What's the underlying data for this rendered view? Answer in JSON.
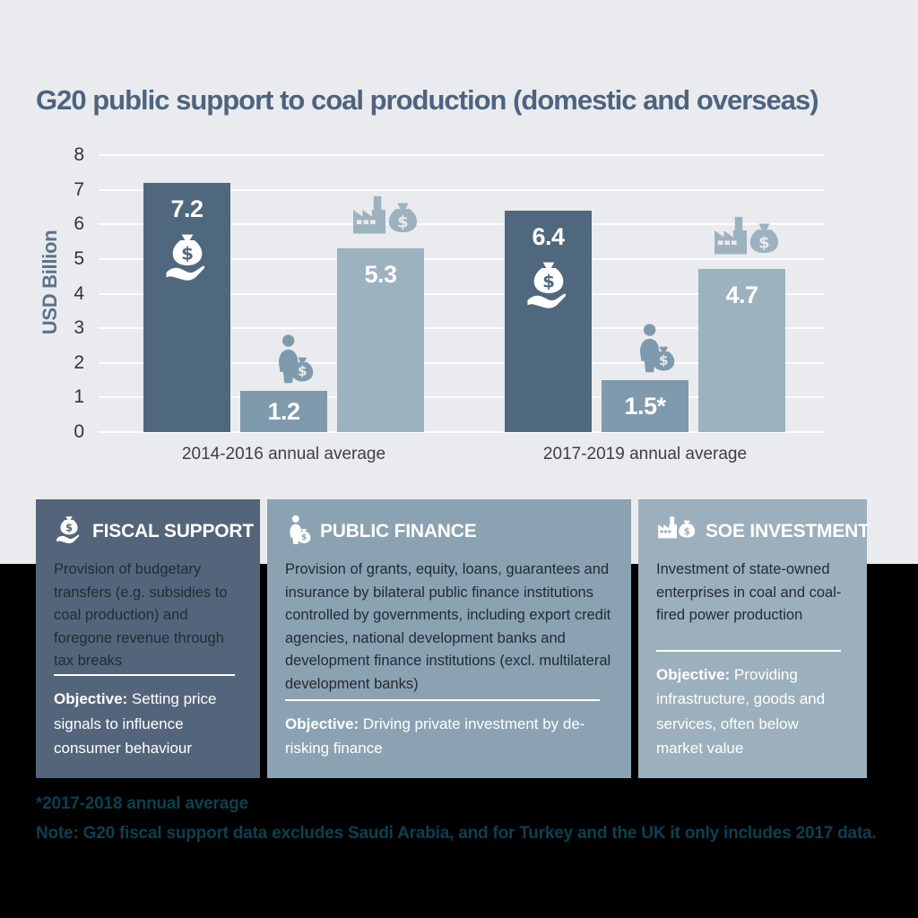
{
  "title": "G20 public support to coal production (domestic and overseas)",
  "chart_data": {
    "type": "bar",
    "title": "G20 public support to coal production (domestic and overseas)",
    "ylabel": "USD Billion",
    "ylim": [
      0,
      8
    ],
    "yticks": [
      0,
      1,
      2,
      3,
      4,
      5,
      6,
      7,
      8
    ],
    "grid": true,
    "legend_position": "none",
    "categories": [
      "2014-2016 annual average",
      "2017-2019 annual average"
    ],
    "series": [
      {
        "name": "Fiscal support",
        "values": [
          7.2,
          6.4
        ],
        "labels": [
          "7.2",
          "6.4"
        ],
        "color": "#50687d",
        "icon": "money-bag-hand",
        "icon_position": "inside"
      },
      {
        "name": "Public finance",
        "values": [
          1.2,
          1.5
        ],
        "labels": [
          "1.2",
          "1.5*"
        ],
        "color": "#7f9aac",
        "icon": "person-money-bag",
        "icon_position": "above"
      },
      {
        "name": "SOE investment",
        "values": [
          5.3,
          4.7
        ],
        "labels": [
          "5.3",
          "4.7"
        ],
        "color": "#9cb2bf",
        "icon": "factory-money-bag",
        "icon_position": "above"
      }
    ]
  },
  "cards": [
    {
      "title": "FISCAL SUPPORT",
      "icon": "money-bag-hand",
      "body": "Provision of budgetary transfers (e.g. subsidies to coal production) and foregone revenue through tax breaks",
      "objective_label": "Objective:",
      "objective_text": " Setting price signals to influence consumer behaviour"
    },
    {
      "title": "PUBLIC FINANCE",
      "icon": "person-money-bag",
      "body": "Provision of grants, equity, loans, guarantees and insurance by bilateral public finance institutions controlled by governments, including export credit agencies, national development banks and development finance institutions (excl. multilateral development banks)",
      "objective_label": "Objective:",
      "objective_text": " Driving private investment by de-risking finance"
    },
    {
      "title": "SOE INVESTMENT",
      "icon": "factory-money-bag",
      "body": "Investment of state-owned enterprises in coal and coal-fired power production",
      "objective_label": "Objective:",
      "objective_text": " Providing infrastructure, goods and services, often below market value"
    }
  ],
  "footnotes": [
    "*2017-2018 annual average",
    "Note: G20 fiscal support data excludes Saudi Arabia, and for Turkey and the UK it only includes 2017 data."
  ],
  "colors": {
    "background_top": "#eaebee",
    "background_bottom": "#000000",
    "title_text": "#4d6480",
    "axis_text": "#2e343b",
    "ylabel_text": "#5a7389",
    "bar_dark": "#50687d",
    "bar_medium": "#7f9aac",
    "bar_light": "#9cb2bf",
    "card_fiscal": "#54657b",
    "card_public_finance": "#8ba2b2",
    "card_soe": "#9cafbc",
    "gridline": "#ffffff",
    "footnote_text": "#0d4050"
  }
}
